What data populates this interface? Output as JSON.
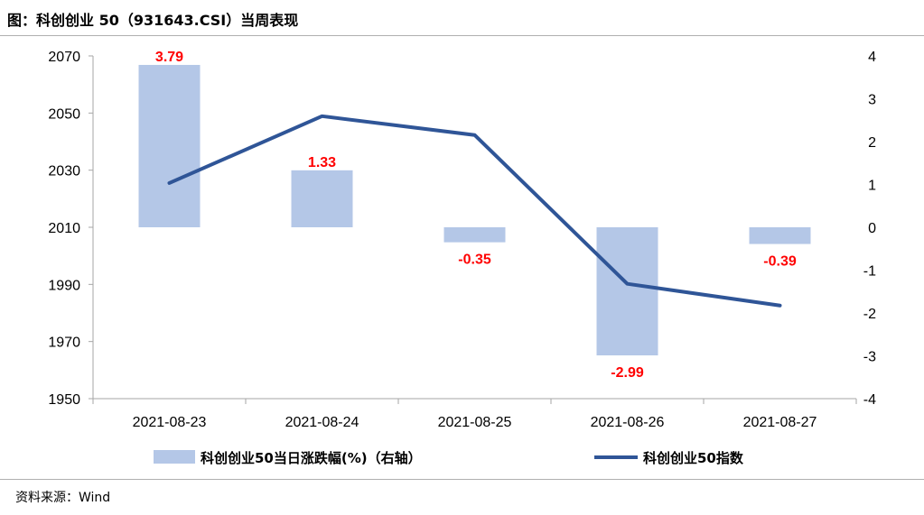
{
  "header": {
    "title": "图：科创创业 50（931643.CSI）当周表现"
  },
  "footer": {
    "source": "资料来源：Wind"
  },
  "chart_data": {
    "type": "bar+line",
    "title": "图：科创创业 50（931643.CSI）当周表现",
    "categories": [
      "2021-08-23",
      "2021-08-24",
      "2021-08-25",
      "2021-08-26",
      "2021-08-27"
    ],
    "series": [
      {
        "name": "科创创业50当日涨跌幅(%)（右轴）",
        "type": "bar",
        "axis": "right",
        "values": [
          3.79,
          1.33,
          -0.35,
          -2.99,
          -0.39
        ],
        "labels": [
          "3.79",
          "1.33",
          "-0.35",
          "-2.99",
          "-0.39"
        ],
        "color": "#b4c7e7",
        "label_color": "#ff0000"
      },
      {
        "name": "科创创业50指数",
        "type": "line",
        "axis": "left",
        "values": [
          2025.5,
          2048.9,
          2042.3,
          1990.2,
          1982.6
        ],
        "color": "#2f5597"
      }
    ],
    "left_axis": {
      "min": 1950,
      "max": 2070,
      "ticks": [
        "2070",
        "2050",
        "2030",
        "2010",
        "1990",
        "1970",
        "1950"
      ],
      "tick_values": [
        2070,
        2050,
        2030,
        2010,
        1990,
        1970,
        1950
      ]
    },
    "right_axis": {
      "min": -4,
      "max": 4,
      "ticks": [
        "4",
        "3",
        "2",
        "1",
        "0",
        "-1",
        "-2",
        "-3",
        "-4"
      ],
      "tick_values": [
        4,
        3,
        2,
        1,
        0,
        -1,
        -2,
        -3,
        -4
      ]
    },
    "legend_position": "bottom",
    "grid": false
  }
}
